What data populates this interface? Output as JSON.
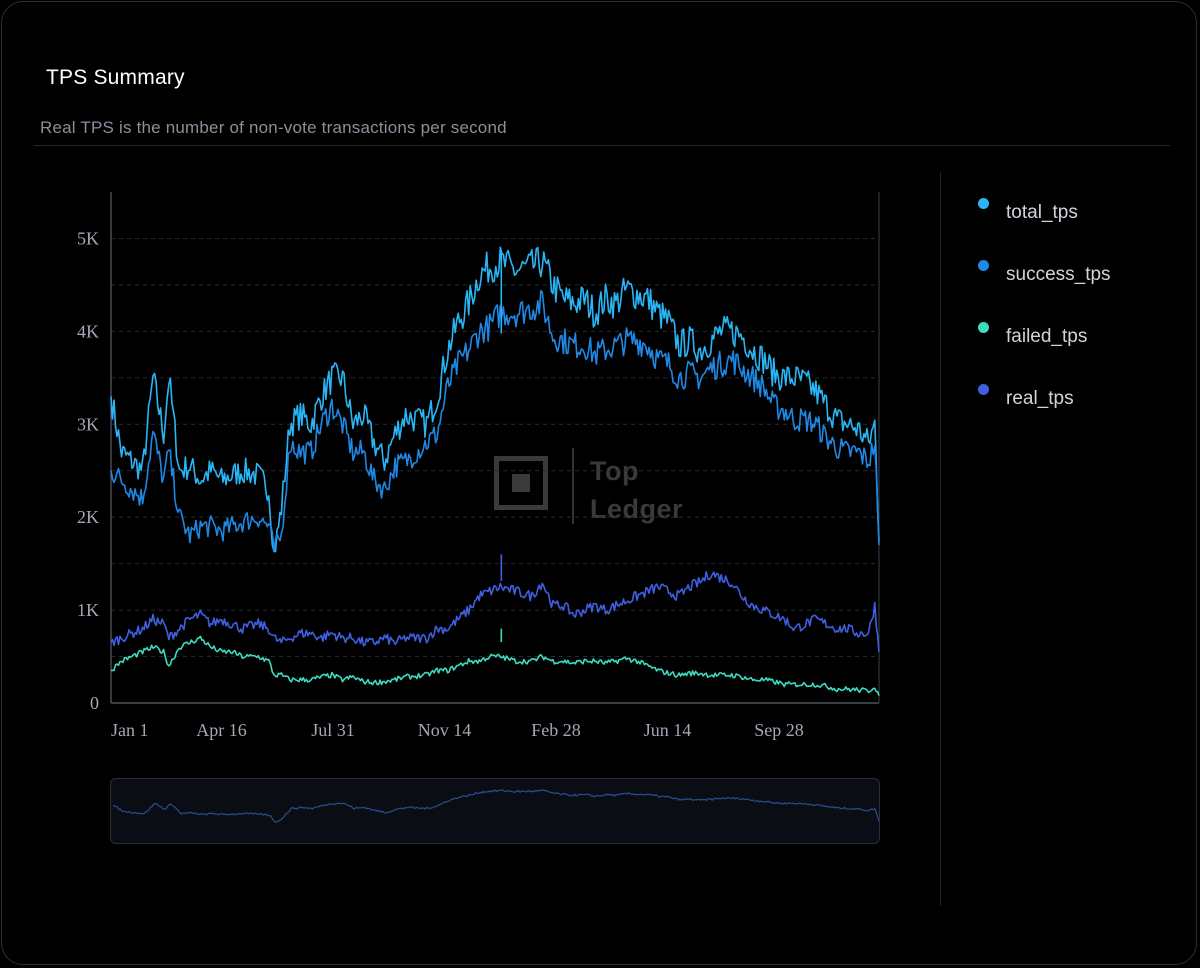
{
  "card": {
    "title": "TPS Summary",
    "subtitle": "Real TPS is the number of non-vote transactions per second"
  },
  "legend": [
    {
      "label": "total_tps",
      "color": "#29b6f6"
    },
    {
      "label": "success_tps",
      "color": "#1e88e5"
    },
    {
      "label": "failed_tps",
      "color": "#3ddbc0"
    },
    {
      "label": "real_tps",
      "color": "#3f5fe0"
    }
  ],
  "watermark": {
    "line1": "Top",
    "line2": "Ledger"
  },
  "chart_data": {
    "type": "line",
    "title": "TPS Summary",
    "xlabel": "",
    "ylabel": "",
    "ylim": [
      0,
      5500
    ],
    "yticks": [
      {
        "value": 0,
        "label": "0"
      },
      {
        "value": 1000,
        "label": "1K"
      },
      {
        "value": 2000,
        "label": "2K"
      },
      {
        "value": 3000,
        "label": "3K"
      },
      {
        "value": 4000,
        "label": "4K"
      },
      {
        "value": 5000,
        "label": "5K"
      }
    ],
    "x_range_days": [
      0,
      730
    ],
    "xticks": [
      {
        "day": 0,
        "label": "Jan 1"
      },
      {
        "day": 105,
        "label": "Apr 16"
      },
      {
        "day": 211,
        "label": "Jul 31"
      },
      {
        "day": 317,
        "label": "Nov 14"
      },
      {
        "day": 423,
        "label": "Feb 28"
      },
      {
        "day": 529,
        "label": "Jun 14"
      },
      {
        "day": 635,
        "label": "Sep 28"
      }
    ],
    "series": [
      {
        "name": "total_tps",
        "color": "#29b6f6",
        "points": [
          [
            0,
            3300
          ],
          [
            10,
            2700
          ],
          [
            20,
            2600
          ],
          [
            30,
            2500
          ],
          [
            40,
            3500
          ],
          [
            50,
            2900
          ],
          [
            55,
            3500
          ],
          [
            65,
            2500
          ],
          [
            75,
            2550
          ],
          [
            85,
            2400
          ],
          [
            95,
            2500
          ],
          [
            105,
            2400
          ],
          [
            115,
            2450
          ],
          [
            125,
            2500
          ],
          [
            140,
            2450
          ],
          [
            150,
            2300
          ],
          [
            155,
            1600
          ],
          [
            162,
            2100
          ],
          [
            170,
            3000
          ],
          [
            180,
            3100
          ],
          [
            190,
            3000
          ],
          [
            200,
            3300
          ],
          [
            210,
            3500
          ],
          [
            220,
            3500
          ],
          [
            230,
            3000
          ],
          [
            240,
            3100
          ],
          [
            250,
            2800
          ],
          [
            260,
            2600
          ],
          [
            270,
            2900
          ],
          [
            280,
            3100
          ],
          [
            300,
            3000
          ],
          [
            310,
            3300
          ],
          [
            320,
            3800
          ],
          [
            330,
            4100
          ],
          [
            340,
            4300
          ],
          [
            350,
            4600
          ],
          [
            360,
            4700
          ],
          [
            370,
            4750
          ],
          [
            385,
            4650
          ],
          [
            400,
            4700
          ],
          [
            410,
            4750
          ],
          [
            420,
            4500
          ],
          [
            430,
            4350
          ],
          [
            440,
            4300
          ],
          [
            450,
            4350
          ],
          [
            460,
            4200
          ],
          [
            470,
            4350
          ],
          [
            480,
            4300
          ],
          [
            490,
            4450
          ],
          [
            500,
            4400
          ],
          [
            510,
            4350
          ],
          [
            520,
            4200
          ],
          [
            530,
            4100
          ],
          [
            540,
            3850
          ],
          [
            550,
            3900
          ],
          [
            560,
            3800
          ],
          [
            570,
            3900
          ],
          [
            580,
            4000
          ],
          [
            590,
            4000
          ],
          [
            600,
            3950
          ],
          [
            610,
            3800
          ],
          [
            620,
            3700
          ],
          [
            630,
            3550
          ],
          [
            640,
            3500
          ],
          [
            650,
            3500
          ],
          [
            660,
            3450
          ],
          [
            670,
            3350
          ],
          [
            680,
            3200
          ],
          [
            690,
            3050
          ],
          [
            700,
            3000
          ],
          [
            710,
            2950
          ],
          [
            720,
            2800
          ],
          [
            726,
            3000
          ],
          [
            730,
            1750
          ]
        ]
      },
      {
        "name": "success_tps",
        "color": "#1e88e5",
        "points": [
          [
            0,
            2500
          ],
          [
            10,
            2400
          ],
          [
            20,
            2300
          ],
          [
            30,
            2200
          ],
          [
            40,
            2900
          ],
          [
            50,
            2400
          ],
          [
            55,
            2700
          ],
          [
            65,
            2000
          ],
          [
            75,
            1800
          ],
          [
            85,
            1900
          ],
          [
            95,
            1900
          ],
          [
            105,
            1850
          ],
          [
            115,
            1900
          ],
          [
            125,
            1950
          ],
          [
            140,
            2000
          ],
          [
            150,
            1900
          ],
          [
            155,
            1650
          ],
          [
            162,
            1800
          ],
          [
            170,
            2800
          ],
          [
            180,
            2700
          ],
          [
            190,
            2700
          ],
          [
            200,
            3000
          ],
          [
            210,
            3200
          ],
          [
            220,
            3000
          ],
          [
            230,
            2700
          ],
          [
            240,
            2700
          ],
          [
            250,
            2400
          ],
          [
            260,
            2300
          ],
          [
            270,
            2550
          ],
          [
            280,
            2600
          ],
          [
            300,
            2800
          ],
          [
            310,
            2900
          ],
          [
            320,
            3400
          ],
          [
            330,
            3650
          ],
          [
            340,
            3800
          ],
          [
            350,
            4000
          ],
          [
            360,
            4050
          ],
          [
            370,
            4200
          ],
          [
            385,
            4200
          ],
          [
            400,
            4250
          ],
          [
            410,
            4300
          ],
          [
            420,
            3950
          ],
          [
            430,
            3900
          ],
          [
            440,
            3850
          ],
          [
            450,
            3850
          ],
          [
            460,
            3750
          ],
          [
            470,
            3800
          ],
          [
            480,
            3850
          ],
          [
            490,
            3900
          ],
          [
            500,
            3900
          ],
          [
            510,
            3850
          ],
          [
            520,
            3700
          ],
          [
            530,
            3650
          ],
          [
            540,
            3500
          ],
          [
            550,
            3550
          ],
          [
            560,
            3500
          ],
          [
            570,
            3600
          ],
          [
            580,
            3650
          ],
          [
            590,
            3700
          ],
          [
            600,
            3600
          ],
          [
            610,
            3500
          ],
          [
            620,
            3400
          ],
          [
            630,
            3200
          ],
          [
            640,
            3150
          ],
          [
            650,
            3050
          ],
          [
            660,
            3050
          ],
          [
            670,
            3000
          ],
          [
            680,
            2850
          ],
          [
            690,
            2750
          ],
          [
            700,
            2700
          ],
          [
            710,
            2700
          ],
          [
            720,
            2600
          ],
          [
            726,
            2800
          ],
          [
            730,
            1700
          ]
        ]
      },
      {
        "name": "real_tps",
        "color": "#3f5fe0",
        "points": [
          [
            0,
            650
          ],
          [
            10,
            700
          ],
          [
            20,
            750
          ],
          [
            30,
            800
          ],
          [
            40,
            900
          ],
          [
            50,
            850
          ],
          [
            55,
            700
          ],
          [
            65,
            800
          ],
          [
            75,
            900
          ],
          [
            85,
            950
          ],
          [
            95,
            850
          ],
          [
            105,
            900
          ],
          [
            115,
            850
          ],
          [
            125,
            800
          ],
          [
            140,
            850
          ],
          [
            150,
            800
          ],
          [
            155,
            700
          ],
          [
            162,
            650
          ],
          [
            170,
            700
          ],
          [
            180,
            750
          ],
          [
            190,
            750
          ],
          [
            200,
            700
          ],
          [
            210,
            750
          ],
          [
            220,
            700
          ],
          [
            230,
            700
          ],
          [
            240,
            650
          ],
          [
            250,
            650
          ],
          [
            260,
            700
          ],
          [
            270,
            650
          ],
          [
            280,
            700
          ],
          [
            300,
            700
          ],
          [
            310,
            800
          ],
          [
            320,
            800
          ],
          [
            330,
            900
          ],
          [
            340,
            1000
          ],
          [
            350,
            1150
          ],
          [
            360,
            1200
          ],
          [
            370,
            1250
          ],
          [
            385,
            1200
          ],
          [
            400,
            1150
          ],
          [
            410,
            1300
          ],
          [
            420,
            1050
          ],
          [
            430,
            1050
          ],
          [
            440,
            950
          ],
          [
            450,
            1000
          ],
          [
            460,
            1050
          ],
          [
            470,
            1000
          ],
          [
            480,
            1050
          ],
          [
            490,
            1100
          ],
          [
            500,
            1150
          ],
          [
            510,
            1200
          ],
          [
            520,
            1250
          ],
          [
            530,
            1200
          ],
          [
            540,
            1150
          ],
          [
            550,
            1250
          ],
          [
            560,
            1300
          ],
          [
            570,
            1400
          ],
          [
            580,
            1350
          ],
          [
            590,
            1300
          ],
          [
            600,
            1150
          ],
          [
            610,
            1050
          ],
          [
            620,
            1000
          ],
          [
            630,
            950
          ],
          [
            640,
            900
          ],
          [
            650,
            800
          ],
          [
            660,
            850
          ],
          [
            670,
            900
          ],
          [
            680,
            850
          ],
          [
            690,
            800
          ],
          [
            700,
            800
          ],
          [
            710,
            750
          ],
          [
            720,
            750
          ],
          [
            726,
            1050
          ],
          [
            730,
            550
          ]
        ]
      },
      {
        "name": "failed_tps",
        "color": "#3ddbc0",
        "points": [
          [
            0,
            350
          ],
          [
            10,
            450
          ],
          [
            20,
            500
          ],
          [
            30,
            550
          ],
          [
            40,
            600
          ],
          [
            50,
            550
          ],
          [
            55,
            400
          ],
          [
            65,
            600
          ],
          [
            75,
            650
          ],
          [
            85,
            700
          ],
          [
            95,
            600
          ],
          [
            105,
            550
          ],
          [
            115,
            550
          ],
          [
            125,
            500
          ],
          [
            140,
            500
          ],
          [
            150,
            450
          ],
          [
            155,
            300
          ],
          [
            162,
            300
          ],
          [
            170,
            250
          ],
          [
            180,
            250
          ],
          [
            190,
            250
          ],
          [
            200,
            280
          ],
          [
            210,
            300
          ],
          [
            220,
            250
          ],
          [
            230,
            280
          ],
          [
            240,
            230
          ],
          [
            250,
            220
          ],
          [
            260,
            230
          ],
          [
            270,
            250
          ],
          [
            280,
            280
          ],
          [
            300,
            300
          ],
          [
            310,
            350
          ],
          [
            320,
            350
          ],
          [
            330,
            400
          ],
          [
            340,
            450
          ],
          [
            350,
            450
          ],
          [
            360,
            500
          ],
          [
            370,
            500
          ],
          [
            385,
            450
          ],
          [
            400,
            450
          ],
          [
            410,
            500
          ],
          [
            420,
            450
          ],
          [
            430,
            450
          ],
          [
            440,
            430
          ],
          [
            450,
            450
          ],
          [
            460,
            450
          ],
          [
            470,
            430
          ],
          [
            480,
            450
          ],
          [
            490,
            480
          ],
          [
            500,
            450
          ],
          [
            510,
            400
          ],
          [
            520,
            350
          ],
          [
            530,
            320
          ],
          [
            540,
            300
          ],
          [
            550,
            320
          ],
          [
            560,
            320
          ],
          [
            570,
            300
          ],
          [
            580,
            300
          ],
          [
            590,
            300
          ],
          [
            600,
            280
          ],
          [
            610,
            250
          ],
          [
            620,
            250
          ],
          [
            630,
            230
          ],
          [
            640,
            200
          ],
          [
            650,
            200
          ],
          [
            660,
            200
          ],
          [
            670,
            200
          ],
          [
            680,
            180
          ],
          [
            690,
            150
          ],
          [
            700,
            150
          ],
          [
            710,
            140
          ],
          [
            720,
            130
          ],
          [
            726,
            180
          ],
          [
            730,
            80
          ]
        ]
      }
    ],
    "annotations": [
      {
        "series": "total_tps",
        "day": 371,
        "value": 4850
      },
      {
        "series": "real_tps",
        "day": 371,
        "value": 1600
      },
      {
        "series": "failed_tps",
        "day": 371,
        "value": 800
      }
    ]
  }
}
